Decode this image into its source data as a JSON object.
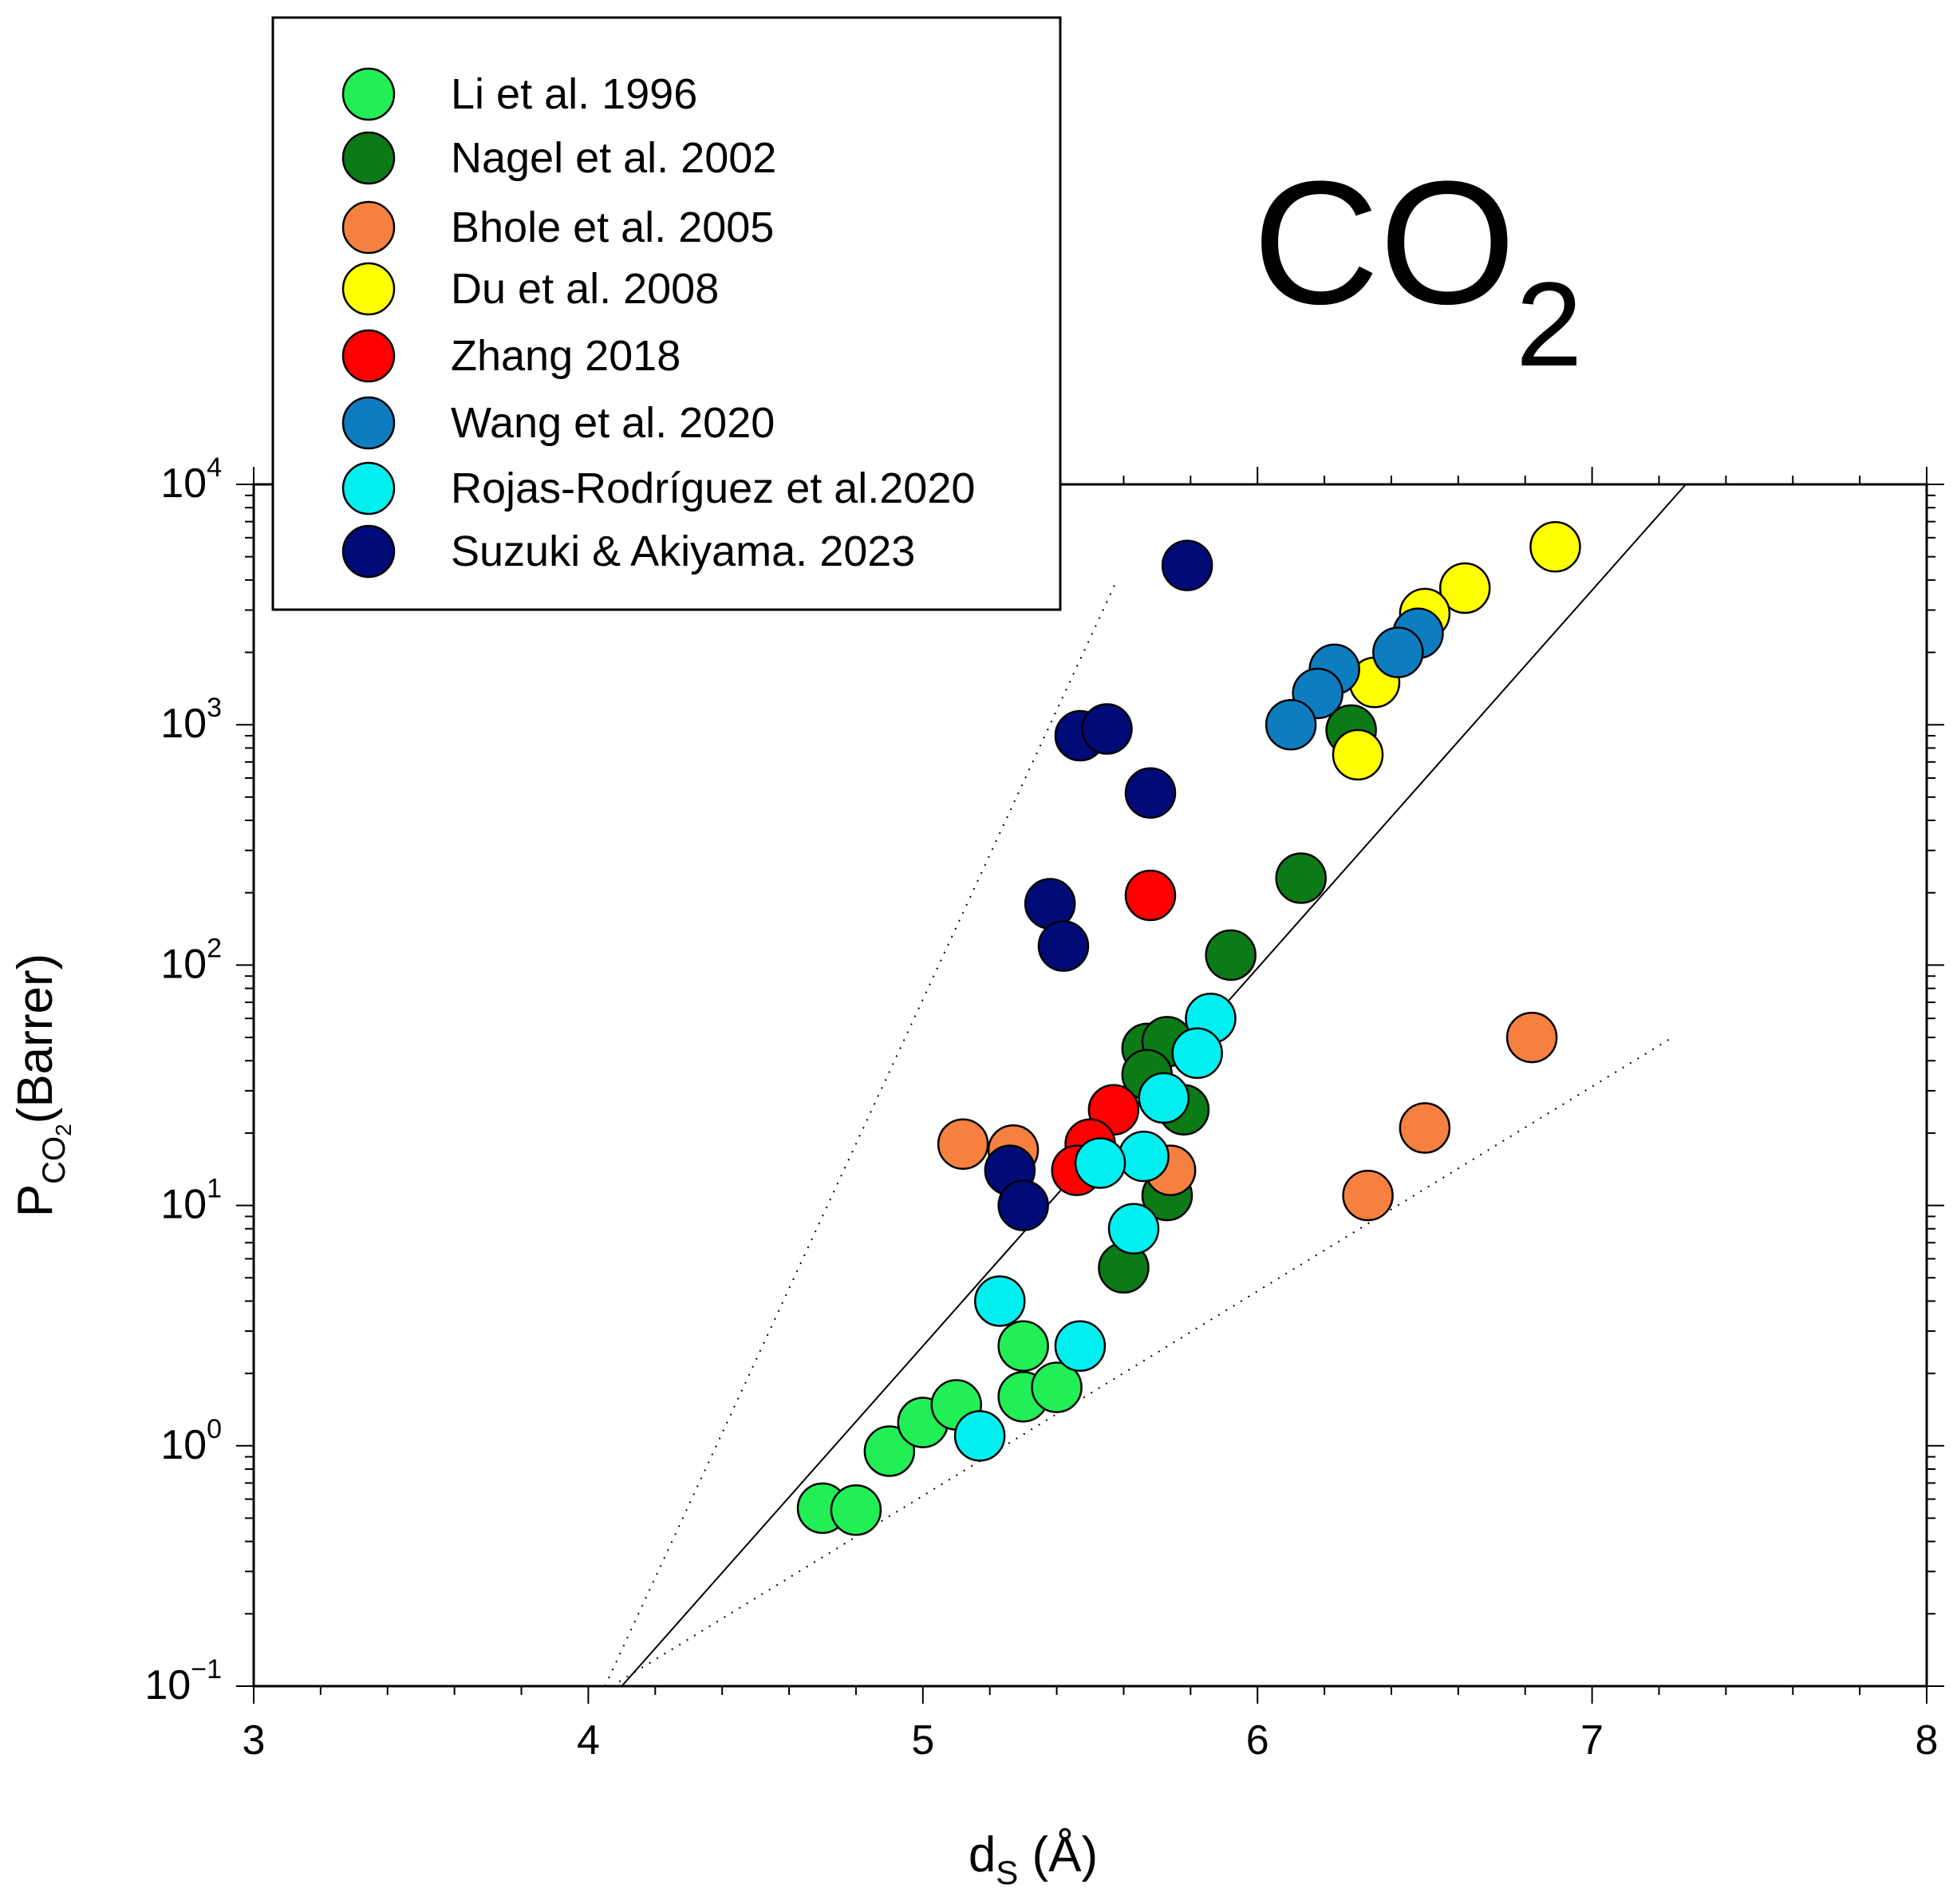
{
  "chart_data": {
    "type": "scatter",
    "title": "CO",
    "title_subscript": "2",
    "xlabel": "d",
    "xlabel_subscript": "S",
    "xlabel_unit": " (Å)",
    "ylabel": "P",
    "ylabel_subscript": "CO",
    "ylabel_subsubscript": "2",
    "ylabel_unit": "(Barrer)",
    "xlim": [
      3,
      8
    ],
    "ylim_log10": [
      -1,
      4
    ],
    "yscale": "log",
    "x_ticks": [
      {
        "value": 3,
        "label": "3"
      },
      {
        "value": 4,
        "label": "4"
      },
      {
        "value": 5,
        "label": "5"
      },
      {
        "value": 6,
        "label": "6"
      },
      {
        "value": 7,
        "label": "7"
      },
      {
        "value": 8,
        "label": "8"
      }
    ],
    "y_ticks": [
      {
        "exp": -1,
        "base": "10",
        "sup": "−1"
      },
      {
        "exp": 0,
        "base": "10",
        "sup": "0"
      },
      {
        "exp": 1,
        "base": "10",
        "sup": "1"
      },
      {
        "exp": 2,
        "base": "10",
        "sup": "2"
      },
      {
        "exp": 3,
        "base": "10",
        "sup": "3"
      },
      {
        "exp": 4,
        "base": "10",
        "sup": "4"
      }
    ],
    "legend_position": "top-left",
    "series": [
      {
        "name": "Li et al. 1996",
        "color": "#22ee55",
        "x": [
          4.7,
          4.8,
          4.9,
          5.0,
          5.1,
          5.3,
          5.3,
          5.4
        ],
        "y": [
          0.55,
          0.54,
          0.95,
          1.25,
          1.48,
          1.6,
          2.6,
          1.75
        ]
      },
      {
        "name": "Nagel et al. 2002",
        "color": "#0b7a17",
        "x": [
          6.28,
          6.13,
          5.92,
          5.67,
          5.73,
          5.67,
          5.78,
          5.73,
          5.6
        ],
        "y": [
          950,
          230,
          110,
          45,
          48,
          35,
          25,
          11,
          5.5
        ]
      },
      {
        "name": "Bhole et al. 2005",
        "color": "#f58040",
        "x": [
          6.82,
          6.5,
          6.33,
          5.12,
          5.27,
          5.74
        ],
        "y": [
          50,
          21,
          11,
          18,
          17,
          14
        ]
      },
      {
        "name": "Du et al. 2008",
        "color": "#ffff00",
        "x": [
          6.89,
          6.62,
          6.5,
          6.35,
          6.3
        ],
        "y": [
          5500,
          3700,
          2900,
          1500,
          750
        ]
      },
      {
        "name": "Zhang 2018",
        "color": "#ff0000",
        "x": [
          5.68,
          5.57,
          5.5,
          5.46
        ],
        "y": [
          195,
          25,
          18,
          14
        ]
      },
      {
        "name": "Wang et al. 2020",
        "color": "#0e7dbf",
        "x": [
          6.48,
          6.42,
          6.23,
          6.18,
          6.1
        ],
        "y": [
          2400,
          2000,
          1700,
          1350,
          1000
        ]
      },
      {
        "name": "Rojas-Rodríguez et al.2020",
        "color": "#00f0f0",
        "x": [
          5.86,
          5.82,
          5.72,
          5.66,
          5.53,
          5.63,
          5.23,
          5.47,
          5.17
        ],
        "y": [
          60,
          43,
          28,
          16,
          15,
          8,
          4,
          2.6,
          1.1
        ]
      },
      {
        "name": "Suzuki & Akiyama. 2023",
        "color": "#000b78",
        "x": [
          5.79,
          5.47,
          5.55,
          5.68,
          5.38,
          5.42,
          5.26,
          5.3
        ],
        "y": [
          4600,
          900,
          960,
          520,
          180,
          120,
          14,
          10
        ]
      }
    ],
    "reference_lines": [
      {
        "name": "solid",
        "style": "solid",
        "x": [
          4.1,
          7.28
        ],
        "y": [
          0.1,
          10000
        ]
      },
      {
        "name": "dotted-upper",
        "style": "dotted",
        "x": [
          4.05,
          5.58
        ],
        "y": [
          0.1,
          4000
        ]
      },
      {
        "name": "dotted-lower",
        "style": "dotted",
        "x": [
          4.07,
          7.24
        ],
        "y": [
          0.1,
          50
        ]
      }
    ]
  }
}
